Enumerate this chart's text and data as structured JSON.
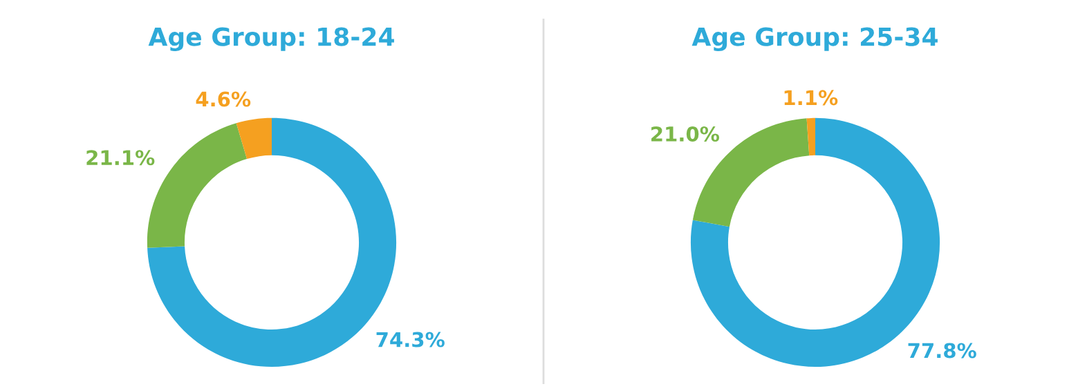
{
  "chart_data": [
    {
      "type": "donut",
      "title": "Age Group: 18-24",
      "categories": [
        null,
        null,
        null
      ],
      "values": [
        74.3,
        21.1,
        4.6
      ],
      "colors": [
        "#2eaad9",
        "#7ab648",
        "#f5a020"
      ],
      "value_labels": [
        "74.3%",
        "21.1%",
        "4.6%"
      ]
    },
    {
      "type": "donut",
      "title": "Age Group: 25-34",
      "categories": [
        null,
        null,
        null
      ],
      "values": [
        77.8,
        21.0,
        1.1
      ],
      "colors": [
        "#2eaad9",
        "#7ab648",
        "#f5a020"
      ],
      "value_labels": [
        "77.8%",
        "21.0%",
        "1.1%"
      ]
    }
  ]
}
